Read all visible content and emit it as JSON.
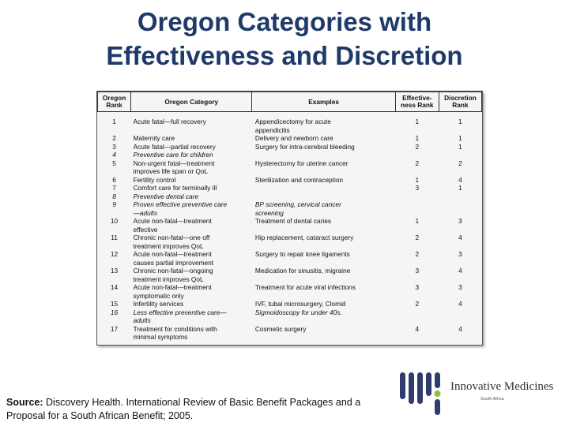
{
  "slide": {
    "title_line1": "Oregon Categories with",
    "title_line2": "Effectiveness and Discretion"
  },
  "table": {
    "headers": {
      "rank": "Oregon Rank",
      "category": "Oregon Category",
      "examples": "Examples",
      "effectiveness": "Effective-ness Rank",
      "discretion": "Discretion Rank"
    },
    "rows": [
      {
        "rank": "1",
        "category": [
          "Acute fatal—full recovery"
        ],
        "examples": [
          "Appendicectomy for acute",
          "appendicitis"
        ],
        "eff": "1",
        "disc": "1",
        "italic": false
      },
      {
        "rank": "2",
        "category": [
          "Maternity care"
        ],
        "examples": [
          "Delivery and newborn care"
        ],
        "eff": "1",
        "disc": "1",
        "italic": false
      },
      {
        "rank": "3",
        "category": [
          "Acute fatal—partial recovery"
        ],
        "examples": [
          "Surgery for intra-cerebral bleeding"
        ],
        "eff": "2",
        "disc": "1",
        "italic": false
      },
      {
        "rank": "4",
        "category": [
          "Preventive care for children"
        ],
        "examples": [],
        "eff": "",
        "disc": "",
        "italic": true
      },
      {
        "rank": "5",
        "category": [
          "Non-urgent fatal—treatment",
          "improves life span or QoL"
        ],
        "examples": [
          "Hysterectomy for uterine cancer"
        ],
        "eff": "2",
        "disc": "2",
        "italic": false
      },
      {
        "rank": "6",
        "category": [
          "Fertility control"
        ],
        "examples": [
          "Sterilization and contraception"
        ],
        "eff": "1",
        "disc": "4",
        "italic": false
      },
      {
        "rank": "7",
        "category": [
          "Comfort care for terminally ill"
        ],
        "examples": [],
        "eff": "3",
        "disc": "1",
        "italic": false
      },
      {
        "rank": "8",
        "category": [
          "Preventive dental care"
        ],
        "examples": [],
        "eff": "",
        "disc": "",
        "italic": true
      },
      {
        "rank": "9",
        "category": [
          "Proven effective preventive care",
          "—adults"
        ],
        "examples": [
          "BP screening, cervical cancer",
          "screening"
        ],
        "eff": "",
        "disc": "",
        "italic": true
      },
      {
        "rank": "10",
        "category": [
          "Acute non-fatal—treatment",
          "effective"
        ],
        "examples": [
          "Treatment of dental caries"
        ],
        "eff": "1",
        "disc": "3",
        "italic": false
      },
      {
        "rank": "11",
        "category": [
          "Chronic non-fatal—one off",
          "treatment improves QoL"
        ],
        "examples": [
          "Hip replacement, cataract surgery"
        ],
        "eff": "2",
        "disc": "4",
        "italic": false
      },
      {
        "rank": "12",
        "category": [
          "Acute non-fatal—treatment",
          "causes partial improvement"
        ],
        "examples": [
          "Surgery to repair knee ligaments"
        ],
        "eff": "2",
        "disc": "3",
        "italic": false
      },
      {
        "rank": "13",
        "category": [
          "Chronic non-fatal—ongoing",
          "treatment improves QoL"
        ],
        "examples": [
          "Medication for sinusitis, migraine"
        ],
        "eff": "3",
        "disc": "4",
        "italic": false
      },
      {
        "rank": "14",
        "category": [
          "Acute non-fatal—treatment",
          "symptomatic only"
        ],
        "examples": [
          "Treatment for acute viral infections"
        ],
        "eff": "3",
        "disc": "3",
        "italic": false
      },
      {
        "rank": "15",
        "category": [
          "Infertility services"
        ],
        "examples": [
          "IVF, tubal microsurgery, Clomid"
        ],
        "eff": "2",
        "disc": "4",
        "italic": false
      },
      {
        "rank": "16",
        "category": [
          "Less effective preventive care—",
          "adults"
        ],
        "examples": [
          "Sigmoidoscopy for under 40s."
        ],
        "eff": "",
        "disc": "",
        "italic": true
      },
      {
        "rank": "17",
        "category": [
          "Treatment for conditions with",
          "minimal symptoms"
        ],
        "examples": [
          "Cosmetic surgery"
        ],
        "eff": "4",
        "disc": "4",
        "italic": false
      }
    ]
  },
  "source": {
    "label": "Source:",
    "text": " Discovery Health. International Review of Basic Benefit Packages and a Proposal for a South African Benefit; 2005."
  },
  "logo": {
    "name": "Innovative Medicines",
    "subtitle": "South Africa",
    "colors": {
      "navy": "#2f3d6e",
      "green": "#8bbf3f"
    }
  }
}
